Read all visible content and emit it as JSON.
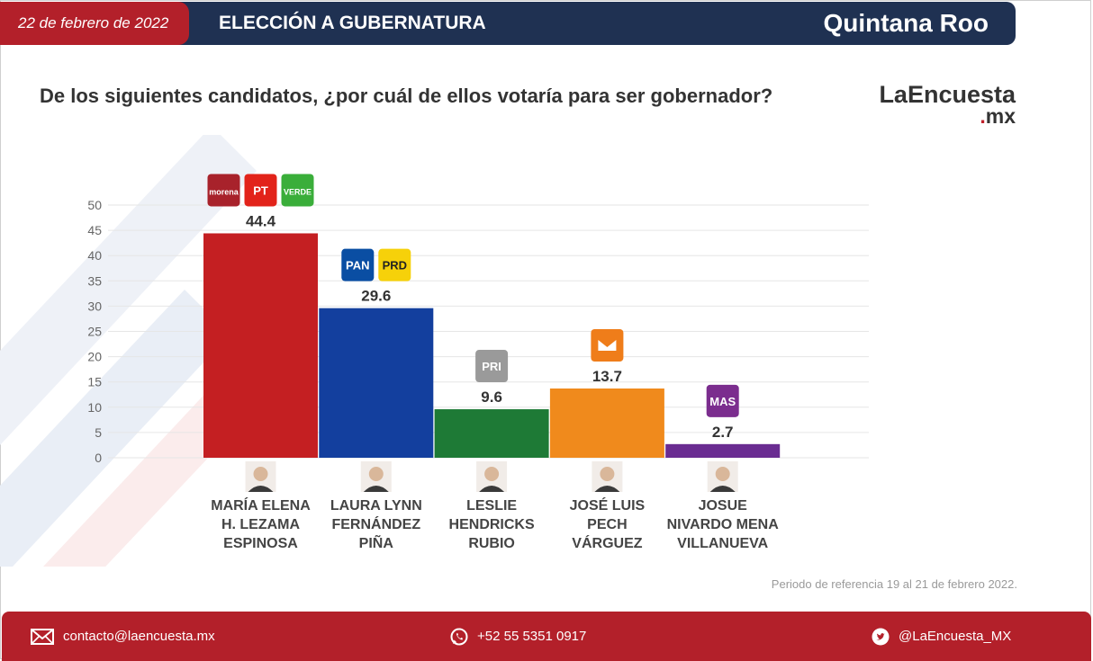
{
  "header": {
    "date": "22 de febrero de 2022",
    "election": "ELECCIÓN A GUBERNATURA",
    "state": "Quintana Roo"
  },
  "question": "De los siguientes candidatos, ¿por cuál de ellos votaría para ser gobernador?",
  "brand": {
    "name": "LaEncuesta",
    "dot": ".",
    "suffix": "mx"
  },
  "note": "Periodo de referencia 19 al 21 de febrero 2022.",
  "footer": {
    "email": "contacto@laencuesta.mx",
    "phone": "+52 55 5351 0917",
    "twitter": "@LaEncuesta_MX"
  },
  "chart_data": {
    "type": "bar",
    "title": "",
    "xlabel": "",
    "ylabel": "",
    "ylim": [
      0,
      50
    ],
    "yticks": [
      0,
      5,
      10,
      15,
      20,
      25,
      30,
      35,
      40,
      45,
      50
    ],
    "grid": true,
    "categories": [
      [
        "MARÍA ELENA",
        "H. LEZAMA",
        "ESPINOSA"
      ],
      [
        "LAURA LYNN",
        "FERNÁNDEZ",
        "PIÑA"
      ],
      [
        "LESLIE",
        "HENDRICKS",
        "RUBIO"
      ],
      [
        "JOSÉ LUIS",
        "PECH",
        "VÁRGUEZ"
      ],
      [
        "JOSUE",
        "NIVARDO MENA",
        "VILLANUEVA"
      ]
    ],
    "values": [
      44.4,
      29.6,
      9.6,
      13.7,
      2.7
    ],
    "labels": [
      "44.4",
      "29.6",
      "9.6",
      "13.7",
      "2.7"
    ],
    "colors": [
      "#c41f22",
      "#133f9e",
      "#1e7a36",
      "#f08a1c",
      "#6a2c91"
    ],
    "parties": [
      [
        {
          "name": "morena",
          "text": "morena",
          "color": "#a8222b"
        },
        {
          "name": "pt",
          "text": "PT",
          "color": "#e2231a"
        },
        {
          "name": "verde",
          "text": "VERDE",
          "color": "#3aae3a"
        }
      ],
      [
        {
          "name": "pan",
          "text": "PAN",
          "color": "#0a4ea3"
        },
        {
          "name": "prd",
          "text": "PRD",
          "color": "#f6d10a"
        }
      ],
      [
        {
          "name": "pri",
          "text": "PRI",
          "color": "#9a9a9a"
        }
      ],
      [
        {
          "name": "movimiento-ciudadano",
          "text": "",
          "color": "#ef7d1a"
        }
      ],
      [
        {
          "name": "mas",
          "text": "MAS",
          "color": "#7b2d8e"
        }
      ]
    ]
  }
}
